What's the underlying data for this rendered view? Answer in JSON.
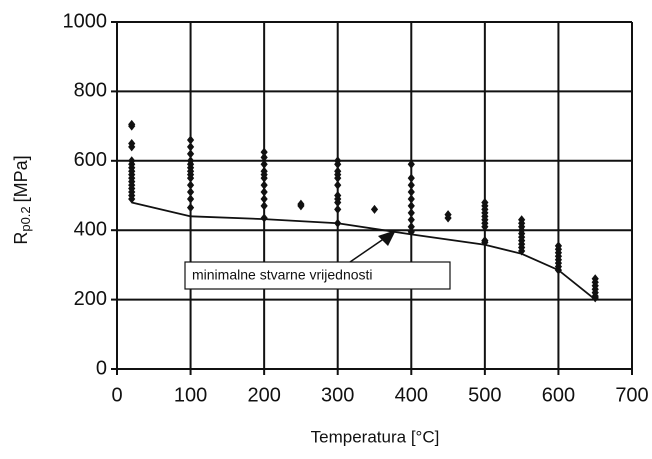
{
  "chart_data": {
    "type": "scatter",
    "x_label": "Temperatura [°C]",
    "y_label": {
      "base": "R",
      "subscript": "p0.2",
      "unit": "[MPa]"
    },
    "annotation": "minimalne stvarne vrijednosti",
    "xlim": [
      0,
      700
    ],
    "xticks": [
      0,
      100,
      200,
      300,
      400,
      500,
      600,
      700
    ],
    "ylim": [
      0,
      1000
    ],
    "yticks": [
      0,
      200,
      400,
      600,
      800,
      1000
    ],
    "grid": true,
    "series": [
      {
        "kind": "scatter",
        "marker": "diamond",
        "color": "#111111",
        "x": [
          20,
          20,
          20,
          20,
          20,
          20,
          20,
          20,
          20,
          20,
          20,
          20,
          20,
          20,
          20,
          20,
          100,
          100,
          100,
          100,
          100,
          100,
          100,
          100,
          100,
          100,
          100,
          100,
          100,
          200,
          200,
          200,
          200,
          200,
          200,
          200,
          200,
          200,
          200,
          200,
          250,
          250,
          300,
          300,
          300,
          300,
          300,
          300,
          300,
          300,
          300,
          300,
          300,
          350,
          400,
          400,
          400,
          400,
          400,
          400,
          400,
          400,
          400,
          400,
          450,
          450,
          500,
          500,
          500,
          500,
          500,
          500,
          500,
          500,
          500,
          500,
          550,
          550,
          550,
          550,
          550,
          550,
          550,
          550,
          550,
          550,
          600,
          600,
          600,
          600,
          600,
          600,
          600,
          600,
          650,
          650,
          650,
          650,
          650,
          650,
          650
        ],
        "values": [
          700,
          705,
          650,
          640,
          600,
          590,
          580,
          570,
          560,
          550,
          540,
          530,
          520,
          510,
          500,
          490,
          660,
          640,
          620,
          600,
          590,
          580,
          570,
          560,
          550,
          530,
          510,
          490,
          465,
          625,
          610,
          590,
          570,
          560,
          550,
          530,
          510,
          490,
          470,
          435,
          475,
          470,
          600,
          590,
          570,
          560,
          550,
          530,
          500,
          490,
          480,
          460,
          420,
          460,
          590,
          550,
          530,
          510,
          490,
          470,
          450,
          430,
          410,
          395,
          445,
          435,
          480,
          470,
          460,
          450,
          440,
          430,
          420,
          410,
          370,
          365,
          430,
          420,
          410,
          400,
          390,
          380,
          370,
          360,
          350,
          340,
          355,
          345,
          335,
          325,
          315,
          305,
          295,
          285,
          260,
          250,
          240,
          230,
          220,
          210,
          205
        ]
      },
      {
        "kind": "line",
        "color": "#111111",
        "x": [
          20,
          100,
          200,
          300,
          400,
          500,
          550,
          600,
          650
        ],
        "values": [
          480,
          440,
          432,
          420,
          388,
          358,
          332,
          285,
          200
        ]
      }
    ]
  }
}
